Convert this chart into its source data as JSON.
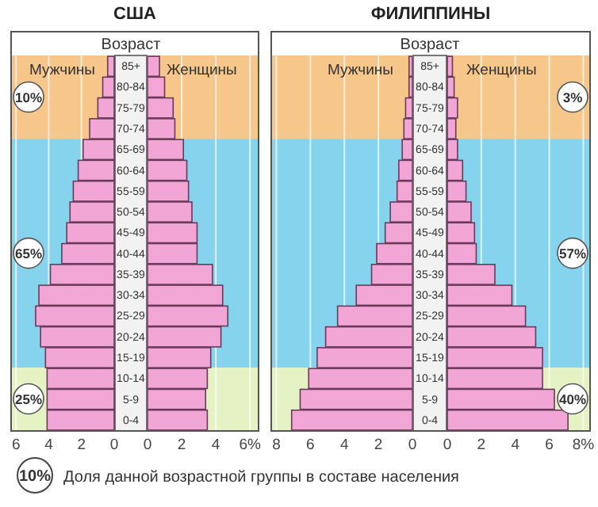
{
  "chart_data": [
    {
      "type": "bar",
      "orientation": "horizontal",
      "title": "США",
      "ylabel": "Возраст",
      "categories": [
        "85+",
        "80-84",
        "75-79",
        "70-74",
        "65-69",
        "60-64",
        "55-59",
        "50-54",
        "45-49",
        "40-44",
        "35-39",
        "30-34",
        "25-29",
        "20-24",
        "15-19",
        "10-14",
        "5-9",
        "0-4"
      ],
      "series": [
        {
          "name": "Мужчины",
          "color": "#f2a6d6",
          "values": [
            0.4,
            0.7,
            1.0,
            1.5,
            1.9,
            2.2,
            2.5,
            2.7,
            2.9,
            3.2,
            3.9,
            4.6,
            4.8,
            4.5,
            4.2,
            4.1,
            4.1,
            4.1
          ]
        }
      ],
      "xlim": [
        6.3,
        0
      ],
      "xticks": [
        6,
        4,
        2,
        0
      ],
      "grid": "x",
      "bands": [
        {
          "axis": "y",
          "from": "85+",
          "to": "70-74",
          "label": "10%",
          "color": "#f7c68a"
        },
        {
          "axis": "y",
          "from": "65-69",
          "to": "15-19",
          "label": "65%",
          "color": "#86d3ee"
        },
        {
          "axis": "y",
          "from": "10-14",
          "to": "0-4",
          "label": "25%",
          "color": "#e4f2c4"
        }
      ],
      "annotations": [
        "10%",
        "Доля данной возрастной группы в составе населения"
      ]
    },
    {
      "type": "bar",
      "orientation": "horizontal",
      "categories": [
        "85+",
        "80-84",
        "75-79",
        "70-74",
        "65-69",
        "60-64",
        "55-59",
        "50-54",
        "45-49",
        "40-44",
        "35-39",
        "30-34",
        "25-29",
        "20-24",
        "15-19",
        "10-14",
        "5-9",
        "0-4"
      ],
      "series": [
        {
          "name": "Женщины",
          "color": "#f2a6d6",
          "values": [
            0.7,
            1.0,
            1.5,
            1.6,
            2.1,
            2.3,
            2.4,
            2.6,
            2.9,
            2.9,
            3.8,
            4.4,
            4.7,
            4.3,
            3.7,
            3.5,
            3.4,
            3.5
          ]
        }
      ],
      "xlim": [
        0,
        6.5
      ],
      "xticks": [
        0,
        2,
        4,
        {
          "value": 6,
          "label": "6%"
        }
      ],
      "grid": "x",
      "tick_labels": "x"
    },
    {
      "type": "bar",
      "orientation": "horizontal",
      "categories": [
        "85+",
        "80-84",
        "75-79",
        "70-74",
        "65-69",
        "60-64",
        "55-59",
        "50-54",
        "45-49",
        "40-44",
        "35-39",
        "30-34",
        "25-29",
        "20-24",
        "15-19",
        "10-14",
        "5-9",
        "0-4"
      ],
      "series": [
        {
          "name": "Мужчины",
          "color": "#f2a6d6",
          "values": [
            0.2,
            0.2,
            0.4,
            0.5,
            0.6,
            0.8,
            0.9,
            1.3,
            1.6,
            2.1,
            2.4,
            3.3,
            4.4,
            5.1,
            5.6,
            6.1,
            6.6,
            7.1
          ]
        }
      ],
      "xlim": [
        8.3,
        0
      ],
      "xticks": [
        8,
        6,
        4,
        2,
        0
      ],
      "grid": "x",
      "tick_labels": "x"
    },
    {
      "type": "bar",
      "orientation": "horizontal",
      "title": "ФИЛИППИНЫ",
      "ylabel": "Возраст",
      "categories": [
        "85+",
        "80-84",
        "75-79",
        "70-74",
        "65-69",
        "60-64",
        "55-59",
        "50-54",
        "45-49",
        "40-44",
        "35-39",
        "30-34",
        "25-29",
        "20-24",
        "15-19",
        "10-14",
        "5-9",
        "0-4"
      ],
      "series": [
        {
          "name": "Женщины",
          "color": "#f2a6d6",
          "values": [
            0.3,
            0.4,
            0.6,
            0.5,
            0.6,
            0.9,
            1.1,
            1.4,
            1.6,
            1.7,
            2.8,
            3.8,
            4.6,
            5.2,
            5.6,
            5.6,
            6.3,
            7.1
          ]
        }
      ],
      "xlim": [
        0,
        8.4
      ],
      "xticks": [
        0,
        2,
        4,
        6,
        {
          "value": 8,
          "label": "8%"
        }
      ],
      "grid": "x",
      "bands": [
        {
          "axis": "y",
          "from": "85+",
          "to": "70-74",
          "label": "3%",
          "color": "#f7c68a"
        },
        {
          "axis": "y",
          "from": "65-69",
          "to": "15-19",
          "label": "57%",
          "color": "#86d3ee"
        },
        {
          "axis": "y",
          "from": "10-14",
          "to": "0-4",
          "label": "40%",
          "color": "#e4f2c4"
        }
      ]
    }
  ]
}
